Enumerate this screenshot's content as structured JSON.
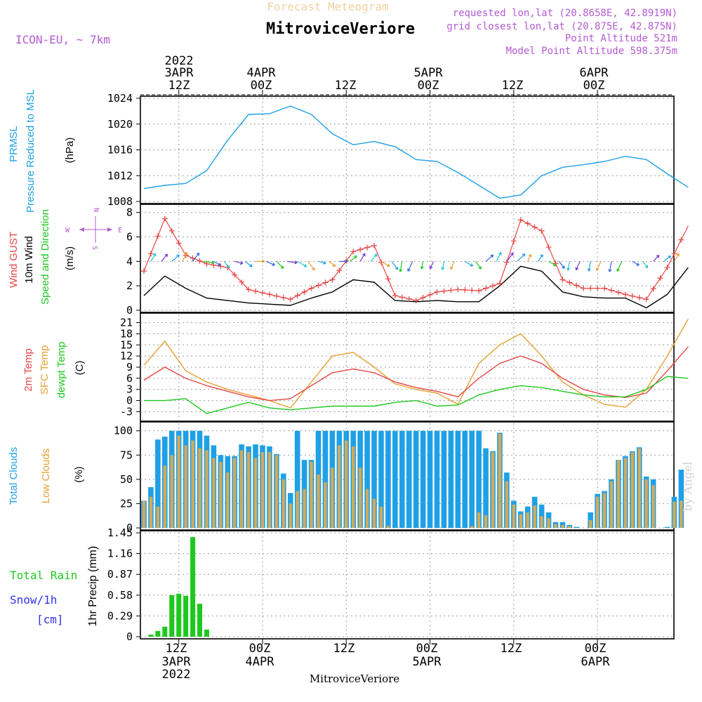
{
  "header": {
    "subtitle": "Forecast Meteogram",
    "location": "MitroviceVeriore",
    "model": "ICON-EU, ~ 7km",
    "requested": "requested lon,lat (20.8658E, 42.8919N)",
    "closest": "grid closest lon,lat (20.875E, 42.875N)",
    "point_alt": "Point Altitude 521m",
    "model_alt": "Model Point Altitude 598.375m",
    "watermark": "by Angel",
    "footer_location": "MitroviceVeriore"
  },
  "colors": {
    "pressure": "#1ea0e6",
    "gust": "#e64646",
    "wind": "#000000",
    "temp": "#e64646",
    "sfc": "#e6a032",
    "dew": "#1ec81e",
    "total_clouds": "#1ea0e6",
    "low_clouds": "#d2aa5a",
    "rain": "#1ec81e",
    "snow": "#3232e6",
    "purple": "#b45ad2"
  },
  "time_axis": {
    "top_labels": [
      {
        "l1": "2022",
        "l2": "3APR",
        "l3": "12Z"
      },
      {
        "l1": "",
        "l2": "4APR",
        "l3": "00Z"
      },
      {
        "l1": "",
        "l2": "",
        "l3": "12Z"
      },
      {
        "l1": "",
        "l2": "5APR",
        "l3": "00Z"
      },
      {
        "l1": "",
        "l2": "",
        "l3": "12Z"
      },
      {
        "l1": "",
        "l2": "6APR",
        "l3": "00Z"
      }
    ],
    "bottom_labels": [
      {
        "l1": "12Z",
        "l2": "3APR",
        "l3": "2022"
      },
      {
        "l1": "00Z",
        "l2": "4APR",
        "l3": ""
      },
      {
        "l1": "12Z",
        "l2": "",
        "l3": ""
      },
      {
        "l1": "00Z",
        "l2": "5APR",
        "l3": ""
      },
      {
        "l1": "12Z",
        "l2": "",
        "l3": ""
      },
      {
        "l1": "00Z",
        "l2": "6APR",
        "l3": ""
      }
    ]
  },
  "chart_data": [
    {
      "type": "line",
      "panel": "pressure",
      "title": "PRMSL Pressure Reduced to MSL",
      "label1": "PRMSL",
      "label2": "Pressure Reduced to MSL",
      "unit": "(hPa)",
      "x_hours": [
        0,
        3,
        6,
        9,
        12,
        15,
        18,
        21,
        24,
        27,
        30,
        33,
        36,
        39,
        42,
        45,
        48,
        51,
        54,
        57,
        60,
        63,
        66,
        69,
        72,
        75,
        78
      ],
      "values": [
        1010,
        1010.5,
        1010.8,
        1012.8,
        1017.5,
        1021.5,
        1021.6,
        1022.8,
        1021.5,
        1018.5,
        1016.8,
        1017.3,
        1016.5,
        1014.5,
        1014.2,
        1012.5,
        1010.5,
        1008.5,
        1009,
        1012,
        1013.3,
        1013.7,
        1014.2,
        1015,
        1014.5,
        1012.3,
        1010.2
      ],
      "ylim": [
        1008,
        1024
      ],
      "yticks": [
        "1008",
        "1012",
        "1016",
        "1020",
        "1024"
      ]
    },
    {
      "type": "line",
      "panel": "wind",
      "label1": "Wind GUST",
      "label2": "10m Wind",
      "label3": "Speed and Direction",
      "unit": "(m/s)",
      "compass": {
        "n": "N",
        "s": "S",
        "w": "W",
        "e": "E"
      },
      "x_hours": [
        0,
        3,
        6,
        9,
        12,
        15,
        18,
        21,
        24,
        27,
        30,
        33,
        36,
        39,
        42,
        45,
        48,
        51,
        54,
        57,
        60,
        63,
        66,
        69,
        72,
        75,
        78
      ],
      "gust": [
        3.2,
        7.5,
        4.5,
        3.8,
        3.5,
        1.7,
        1.3,
        0.9,
        1.8,
        2.5,
        4.8,
        5.3,
        1.2,
        0.8,
        1.5,
        1.7,
        1.6,
        2.2,
        7.4,
        6.5,
        2.5,
        1.8,
        1.8,
        1.3,
        0.9,
        3.5,
        6.9
      ],
      "wind": [
        1.2,
        2.8,
        1.8,
        1.0,
        0.8,
        0.6,
        0.5,
        0.4,
        1.0,
        1.5,
        2.5,
        2.3,
        0.8,
        0.7,
        0.8,
        0.7,
        0.7,
        2.0,
        3.6,
        3.2,
        1.5,
        1.1,
        1.0,
        1.0,
        0.2,
        1.3,
        3.5
      ],
      "ylim": [
        0,
        8.5
      ],
      "yticks": [
        "0",
        "2",
        "4",
        "6",
        "8"
      ]
    },
    {
      "type": "line",
      "panel": "temperature",
      "label1": "2m Temp",
      "label2": "SFC Temp",
      "label3": "dewpt Temp",
      "unit": "(C)",
      "x_hours": [
        0,
        3,
        6,
        9,
        12,
        15,
        18,
        21,
        24,
        27,
        30,
        33,
        36,
        39,
        42,
        45,
        48,
        51,
        54,
        57,
        60,
        63,
        66,
        69,
        72,
        75,
        78
      ],
      "temp": [
        5.5,
        9,
        6,
        4,
        2.5,
        1,
        0,
        0.5,
        4,
        7.5,
        8.5,
        7.5,
        5,
        3.5,
        2.5,
        1,
        6,
        10,
        12,
        10,
        6,
        3,
        1.5,
        0.8,
        2,
        8,
        14.5
      ],
      "sfc": [
        9.5,
        16,
        8,
        5,
        3,
        1.5,
        0,
        -2,
        5,
        12,
        13,
        9,
        4.5,
        3,
        2,
        -1,
        10,
        15,
        18,
        12,
        5,
        1.5,
        -1,
        -1.8,
        3,
        12,
        22
      ],
      "dew": [
        0,
        0,
        0.5,
        -3.5,
        -2,
        -0.5,
        -2,
        -2.5,
        -2,
        -1.5,
        -1.5,
        -1.5,
        -0.5,
        0,
        -1.5,
        -1.2,
        1.5,
        3,
        4,
        3.5,
        2.5,
        1.5,
        1,
        1,
        3,
        6.5,
        6
      ],
      "ylim": [
        -5,
        23
      ],
      "yticks": [
        "-3",
        "0",
        "3",
        "6",
        "9",
        "12",
        "15",
        "18",
        "21"
      ]
    },
    {
      "type": "bar",
      "panel": "clouds",
      "label1": "Total Clouds",
      "label2": "Low Clouds",
      "unit": "(%)",
      "x_hours": [
        0,
        1,
        2,
        3,
        4,
        5,
        6,
        7,
        8,
        9,
        10,
        11,
        12,
        13,
        14,
        15,
        16,
        17,
        18,
        19,
        20,
        21,
        22,
        23,
        24,
        25,
        26,
        27,
        28,
        29,
        30,
        31,
        32,
        33,
        34,
        35,
        36,
        37,
        38,
        39,
        40,
        41,
        42,
        43,
        44,
        45,
        46,
        47,
        48,
        49,
        50,
        51,
        52,
        53,
        54,
        55,
        56,
        57,
        58,
        59,
        60,
        61,
        62,
        63,
        64,
        65,
        66,
        67,
        68,
        69,
        70,
        71,
        72,
        73,
        74,
        75,
        76,
        77
      ],
      "total": [
        28,
        42,
        91,
        94,
        100,
        100,
        100,
        100,
        100,
        95,
        85,
        75,
        74,
        74,
        86,
        84,
        86,
        85,
        84,
        76,
        56,
        36,
        100,
        70,
        70,
        100,
        100,
        100,
        100,
        100,
        100,
        100,
        100,
        100,
        100,
        100,
        100,
        100,
        100,
        100,
        100,
        100,
        100,
        100,
        100,
        100,
        100,
        100,
        100,
        82,
        79,
        98,
        57,
        28,
        17,
        22,
        32,
        24,
        16,
        6,
        6,
        3,
        1,
        0,
        16,
        35,
        38,
        50,
        70,
        74,
        79,
        83,
        53,
        50,
        0,
        1,
        32,
        60
      ],
      "low": [
        28,
        32,
        22,
        64,
        75,
        95,
        85,
        90,
        82,
        80,
        72,
        68,
        57,
        72,
        80,
        78,
        72,
        78,
        78,
        75,
        50,
        25,
        38,
        40,
        68,
        55,
        47,
        62,
        85,
        90,
        84,
        62,
        40,
        30,
        22,
        2,
        0,
        0,
        0,
        0,
        0,
        0,
        0,
        0,
        0,
        0,
        0,
        2,
        16,
        13,
        78,
        97,
        48,
        24,
        14,
        16,
        23,
        12,
        10,
        4,
        3,
        2,
        0,
        0,
        8,
        32,
        36,
        48,
        70,
        72,
        78,
        82,
        50,
        44,
        0,
        0,
        27,
        28
      ],
      "ylim": [
        0,
        107
      ],
      "yticks": [
        "0",
        "25",
        "50",
        "75",
        "100"
      ]
    },
    {
      "type": "bar",
      "panel": "precip",
      "label1": "Total Rain",
      "label2": "Snow/1h",
      "label3": "[cm]",
      "unit": "1hr Precip (mm)",
      "x_hours": [
        1,
        2,
        3,
        4,
        5,
        6,
        7,
        8,
        9
      ],
      "values": [
        0.03,
        0.08,
        0.14,
        0.58,
        0.6,
        0.57,
        1.39,
        0.46,
        0.1
      ],
      "ylim": [
        0,
        1.45
      ],
      "yticks": [
        "0",
        "0.29",
        "0.58",
        "0.87",
        "1.16",
        "1.45"
      ]
    }
  ]
}
